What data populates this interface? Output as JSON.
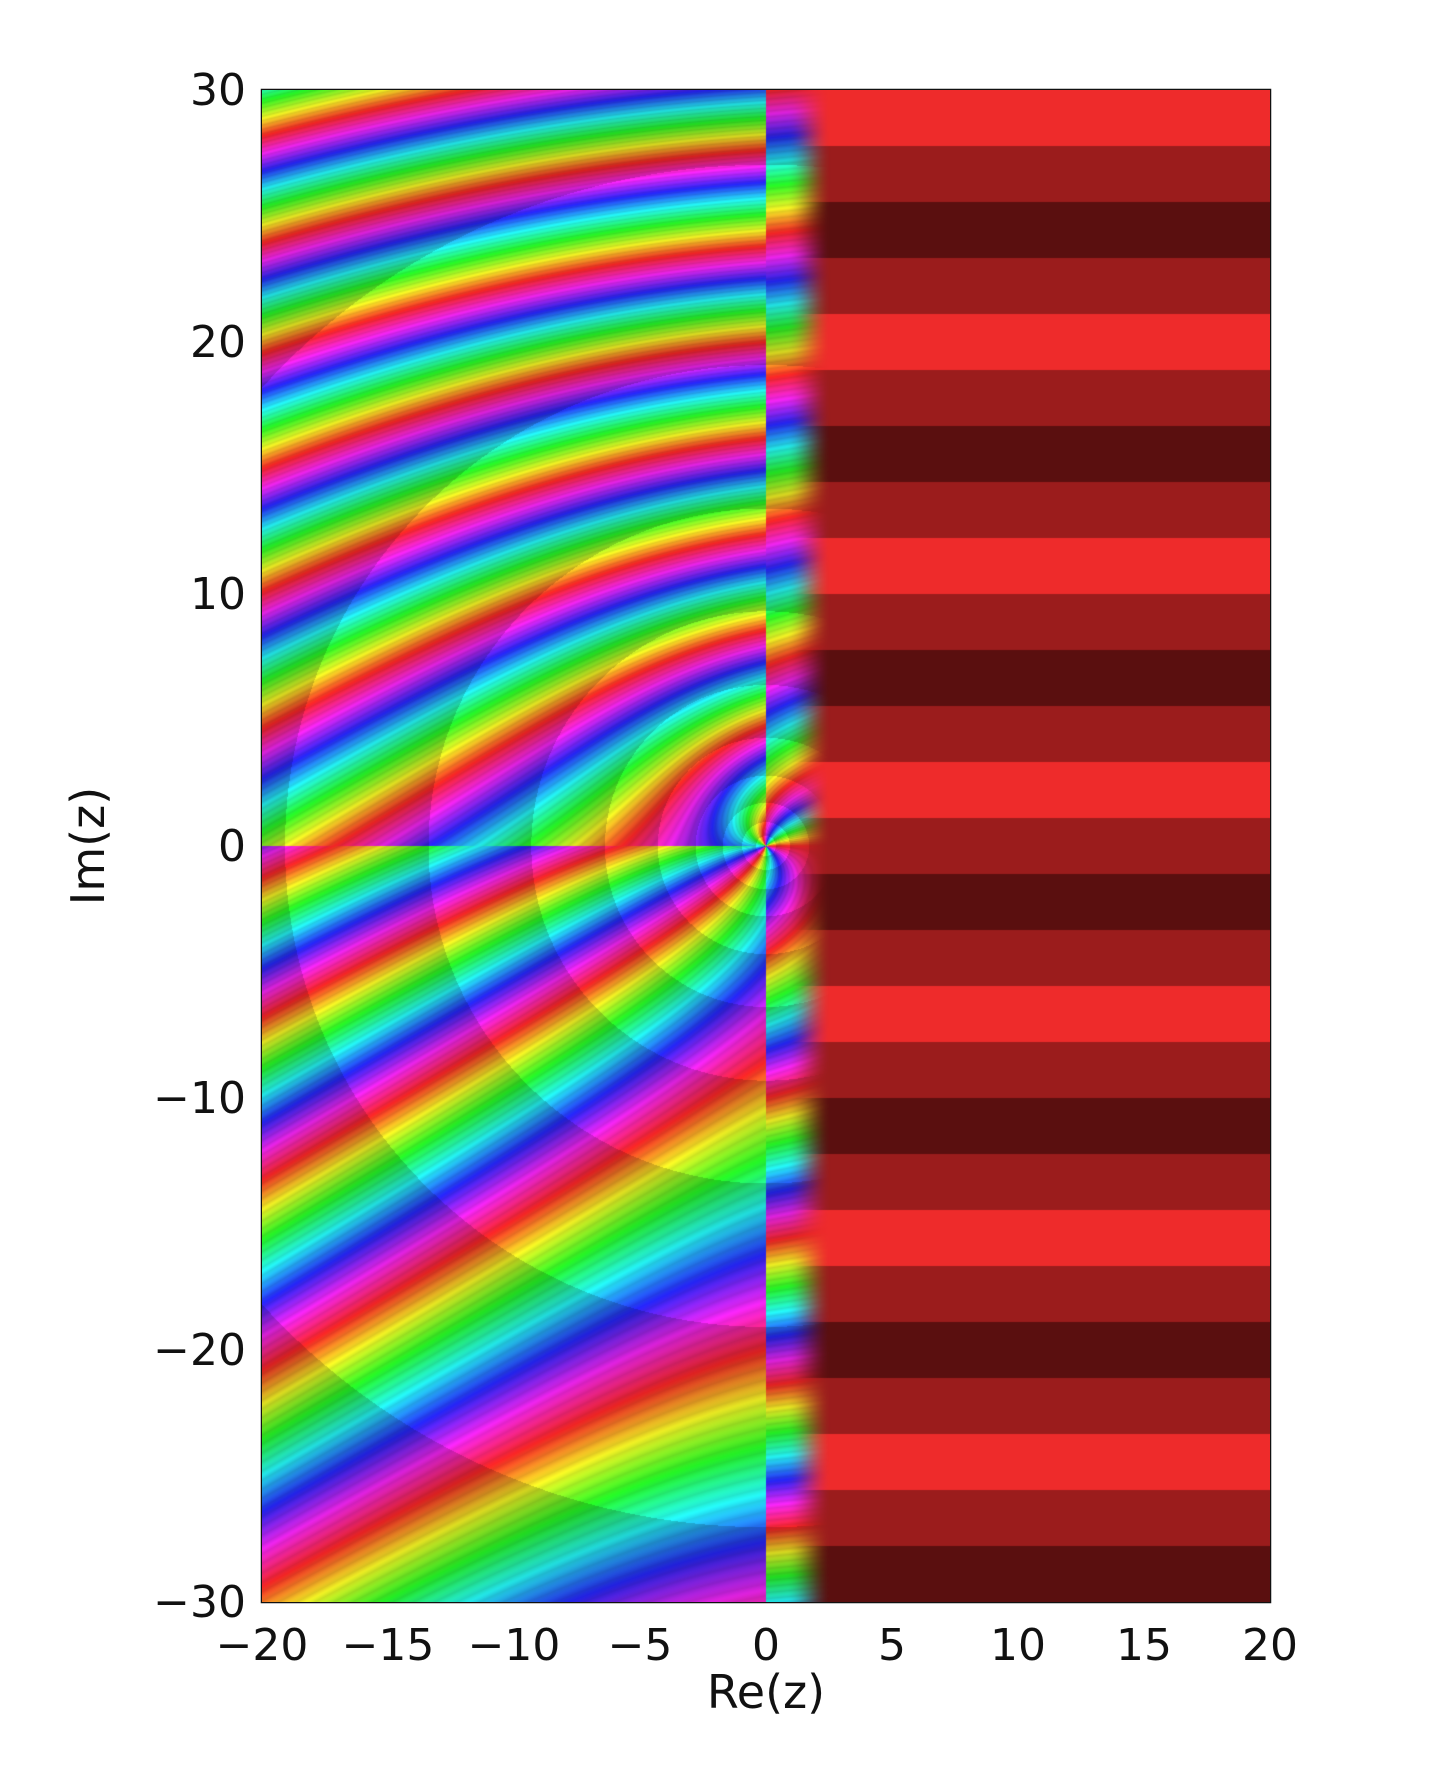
{
  "chart_data": {
    "type": "heatmap",
    "subtype": "domain-coloring (phase portrait of complex function)",
    "title": "",
    "xlabel": "Re(z)",
    "ylabel": "Im(z)",
    "xlim": [
      -20,
      20
    ],
    "ylim": [
      -30,
      30
    ],
    "xticks": [
      -20,
      -15,
      -10,
      -5,
      0,
      5,
      10,
      15,
      20
    ],
    "yticks": [
      -30,
      -20,
      -10,
      0,
      10,
      20,
      30
    ],
    "xtick_labels": [
      "−20",
      "−15",
      "−10",
      "−5",
      "0",
      "5",
      "10",
      "15",
      "20"
    ],
    "ytick_labels": [
      "−30",
      "−20",
      "−10",
      "0",
      "10",
      "20",
      "30"
    ],
    "grid": false,
    "legend": "none",
    "colors": {
      "right_half_bands": [
        "#5a0f0f",
        "#9b1c1c",
        "#ee2b2b"
      ],
      "left_half_hue_cycle": [
        "#e02020",
        "#e8d020",
        "#30c030",
        "#20a0d8",
        "#4040c0",
        "#c030c0"
      ]
    }
  }
}
